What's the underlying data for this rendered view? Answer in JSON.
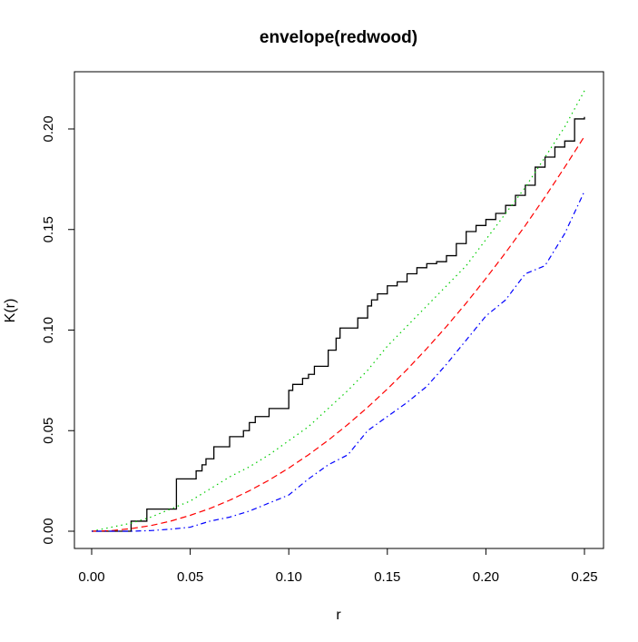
{
  "chart_data": {
    "type": "line",
    "title": "envelope(redwood)",
    "xlabel": "r",
    "ylabel": "K(r)",
    "xlim": [
      0,
      0.25
    ],
    "ylim": [
      0,
      0.21
    ],
    "xticks": [
      "0.00",
      "0.05",
      "0.10",
      "0.15",
      "0.20",
      "0.25"
    ],
    "yticks": [
      "0.00",
      "0.05",
      "0.10",
      "0.15",
      "0.20"
    ],
    "grid": false,
    "series": [
      {
        "color": "#000000",
        "dash": "solid",
        "step": true,
        "x": [
          0,
          0.02,
          0.028,
          0.043,
          0.053,
          0.056,
          0.058,
          0.062,
          0.07,
          0.077,
          0.08,
          0.083,
          0.085,
          0.09,
          0.1,
          0.102,
          0.107,
          0.11,
          0.113,
          0.12,
          0.124,
          0.126,
          0.13,
          0.135,
          0.14,
          0.142,
          0.145,
          0.15,
          0.155,
          0.16,
          0.165,
          0.17,
          0.175,
          0.18,
          0.185,
          0.19,
          0.195,
          0.2,
          0.205,
          0.21,
          0.215,
          0.22,
          0.225,
          0.23,
          0.235,
          0.24,
          0.245,
          0.25
        ],
        "y": [
          0,
          0.005,
          0.011,
          0.026,
          0.03,
          0.033,
          0.036,
          0.042,
          0.047,
          0.05,
          0.054,
          0.057,
          0.057,
          0.061,
          0.07,
          0.073,
          0.076,
          0.078,
          0.082,
          0.09,
          0.096,
          0.101,
          0.101,
          0.106,
          0.112,
          0.115,
          0.118,
          0.122,
          0.124,
          0.128,
          0.131,
          0.133,
          0.134,
          0.137,
          0.143,
          0.149,
          0.152,
          0.155,
          0.158,
          0.162,
          0.167,
          0.172,
          0.181,
          0.186,
          0.191,
          0.194,
          0.205,
          0.206
        ]
      },
      {
        "color": "#00cd00",
        "dash": "dotted",
        "step": false,
        "x": [
          0,
          0.01,
          0.02,
          0.03,
          0.04,
          0.05,
          0.06,
          0.07,
          0.08,
          0.09,
          0.1,
          0.11,
          0.12,
          0.13,
          0.14,
          0.15,
          0.16,
          0.17,
          0.18,
          0.19,
          0.2,
          0.21,
          0.22,
          0.23,
          0.24,
          0.25
        ],
        "y": [
          0,
          0.002,
          0.004,
          0.007,
          0.011,
          0.015,
          0.021,
          0.027,
          0.032,
          0.038,
          0.045,
          0.052,
          0.061,
          0.07,
          0.08,
          0.092,
          0.102,
          0.112,
          0.122,
          0.132,
          0.145,
          0.158,
          0.171,
          0.186,
          0.201,
          0.219
        ]
      },
      {
        "color": "#ff0000",
        "dash": "dashed",
        "step": false,
        "x": [
          0,
          0.01,
          0.02,
          0.03,
          0.04,
          0.05,
          0.06,
          0.07,
          0.08,
          0.09,
          0.1,
          0.11,
          0.12,
          0.13,
          0.14,
          0.15,
          0.16,
          0.17,
          0.18,
          0.19,
          0.2,
          0.21,
          0.22,
          0.23,
          0.24,
          0.25
        ],
        "y": [
          0,
          0.0003,
          0.0013,
          0.0028,
          0.005,
          0.0079,
          0.0113,
          0.0154,
          0.0201,
          0.0254,
          0.0314,
          0.038,
          0.0452,
          0.0531,
          0.0616,
          0.0707,
          0.0804,
          0.0908,
          0.1018,
          0.1134,
          0.1257,
          0.1385,
          0.152,
          0.1662,
          0.181,
          0.1963
        ]
      },
      {
        "color": "#0000ff",
        "dash": "dotdash",
        "step": false,
        "x": [
          0,
          0.01,
          0.02,
          0.03,
          0.04,
          0.05,
          0.06,
          0.07,
          0.08,
          0.09,
          0.1,
          0.11,
          0.12,
          0.13,
          0.14,
          0.15,
          0.16,
          0.17,
          0.18,
          0.19,
          0.2,
          0.21,
          0.22,
          0.23,
          0.24,
          0.25
        ],
        "y": [
          0,
          0,
          0,
          0.0003,
          0.001,
          0.002,
          0.005,
          0.007,
          0.01,
          0.014,
          0.018,
          0.026,
          0.033,
          0.038,
          0.05,
          0.057,
          0.064,
          0.072,
          0.083,
          0.095,
          0.107,
          0.115,
          0.128,
          0.132,
          0.148,
          0.169
        ]
      }
    ]
  }
}
